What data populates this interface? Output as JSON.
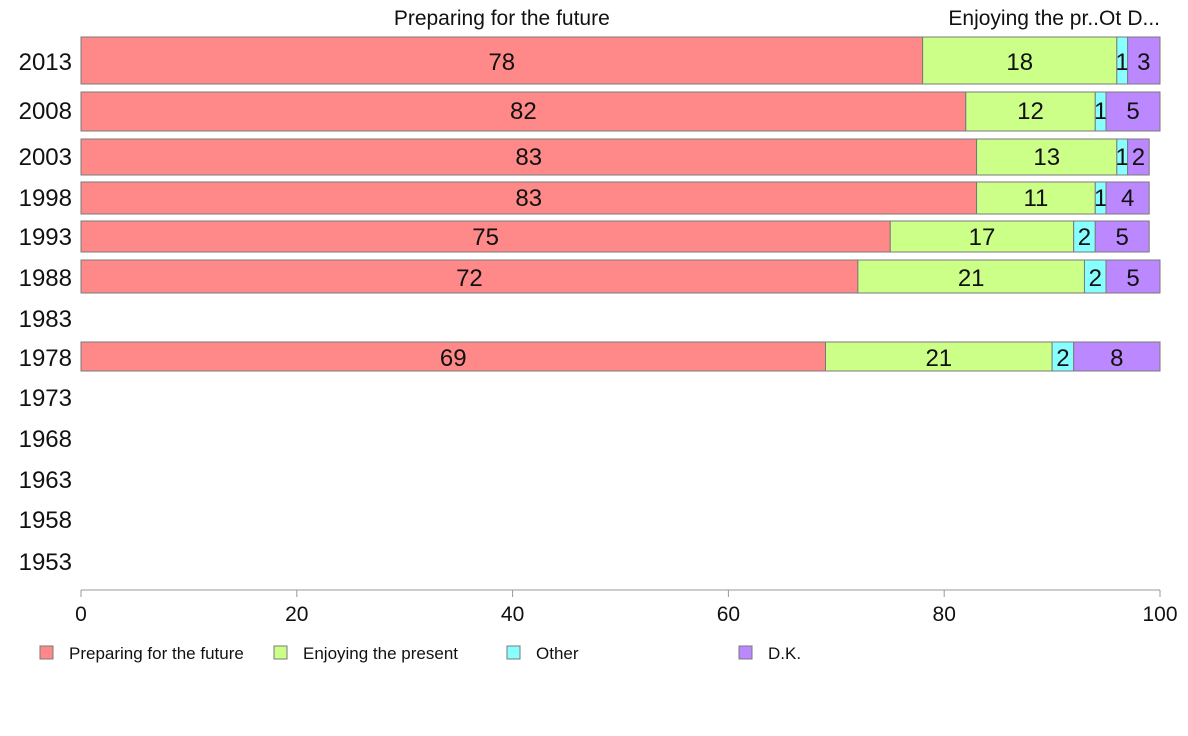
{
  "chart_data": {
    "type": "bar",
    "orientation": "horizontal",
    "stacked": true,
    "categories": [
      "2013",
      "2008",
      "2003",
      "1998",
      "1993",
      "1988",
      "1983",
      "1978",
      "1973",
      "1968",
      "1963",
      "1958",
      "1953"
    ],
    "series": [
      {
        "name": "Preparing for the future",
        "color": "#ff8888",
        "values": [
          78,
          82,
          83,
          83,
          75,
          72,
          null,
          69,
          null,
          null,
          null,
          null,
          null
        ]
      },
      {
        "name": "Enjoying the present",
        "color": "#ccff88",
        "values": [
          18,
          12,
          13,
          11,
          17,
          21,
          null,
          21,
          null,
          null,
          null,
          null,
          null
        ]
      },
      {
        "name": "Other",
        "color": "#88ffff",
        "values": [
          1,
          1,
          1,
          1,
          2,
          2,
          null,
          2,
          null,
          null,
          null,
          null,
          null
        ]
      },
      {
        "name": "D.K.",
        "color": "#bb88ff",
        "values": [
          3,
          5,
          2,
          4,
          5,
          5,
          null,
          8,
          null,
          null,
          null,
          null,
          null
        ]
      }
    ],
    "top_labels": [
      "Preparing for the future",
      "Enjoying the pr..",
      "Ot",
      "D..."
    ],
    "xlim": [
      0,
      100
    ],
    "xticks": [
      "0",
      "20",
      "40",
      "60",
      "80",
      "100"
    ],
    "legend_position": "bottom-left"
  }
}
